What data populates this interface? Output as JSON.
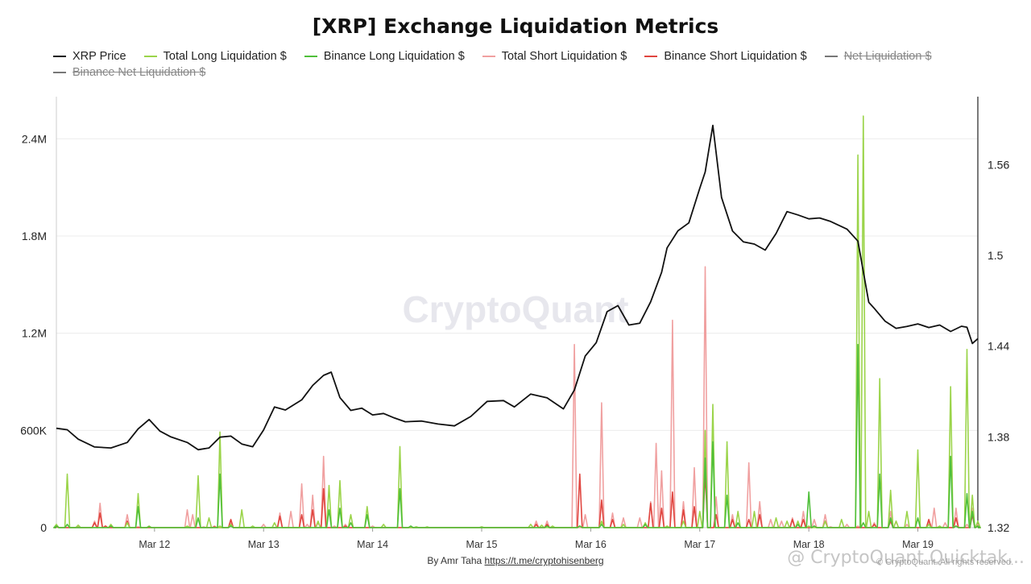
{
  "title": "[XRP] Exchange Liquidation Metrics",
  "legend": [
    {
      "label": "XRP Price",
      "color": "#111111",
      "hidden": false
    },
    {
      "label": "Total Long Liquidation $",
      "color": "#9bd44a",
      "hidden": false
    },
    {
      "label": "Binance Long Liquidation $",
      "color": "#4fbf3a",
      "hidden": false
    },
    {
      "label": "Total Short Liquidation $",
      "color": "#f0a0a0",
      "hidden": false
    },
    {
      "label": "Binance Short Liquidation $",
      "color": "#e0453f",
      "hidden": false
    },
    {
      "label": "Net Liquidation $",
      "color": "#777777",
      "hidden": true
    },
    {
      "label": "Binance Net Liquidation $",
      "color": "#777777",
      "hidden": true
    }
  ],
  "footer": {
    "prefix": "By Amr Taha",
    "link": "https://t.me/cryptohisenberg"
  },
  "watermark_center": "CryptoQuant",
  "watermark_corner": "@ CryptoQuant Quicktak...",
  "copyright": "© CryptoQuant. All rights reserved.",
  "chart_data": {
    "type": "line",
    "x_ticks": [
      "Mar 12",
      "Mar 13",
      "Mar 14",
      "Mar 15",
      "Mar 16",
      "Mar 17",
      "Mar 18",
      "Mar 19"
    ],
    "x_range": [
      11.1,
      19.55
    ],
    "y_left": {
      "ticks": [
        0,
        600000,
        1200000,
        1800000,
        2400000
      ],
      "tick_labels": [
        "0",
        "600K",
        "1.2M",
        "1.8M",
        "2.4M"
      ],
      "range": [
        0,
        2660000
      ]
    },
    "y_right": {
      "ticks": [
        1.32,
        1.38,
        1.44,
        1.5,
        1.56
      ],
      "tick_labels": [
        "1.32",
        "1.38",
        "1.44",
        "1.5",
        "1.56"
      ],
      "range": [
        1.32,
        1.605
      ]
    },
    "series": [
      {
        "name": "XRP Price",
        "axis": "right",
        "color": "#111111",
        "points": [
          [
            11.1,
            1.3857
          ],
          [
            11.2,
            1.3847
          ],
          [
            11.3,
            1.3785
          ],
          [
            11.45,
            1.3733
          ],
          [
            11.6,
            1.3727
          ],
          [
            11.75,
            1.3763
          ],
          [
            11.85,
            1.3853
          ],
          [
            11.95,
            1.3915
          ],
          [
            12.05,
            1.3838
          ],
          [
            12.15,
            1.38
          ],
          [
            12.3,
            1.3763
          ],
          [
            12.4,
            1.3715
          ],
          [
            12.5,
            1.3727
          ],
          [
            12.6,
            1.3798
          ],
          [
            12.7,
            1.3805
          ],
          [
            12.8,
            1.3753
          ],
          [
            12.9,
            1.3735
          ],
          [
            13.0,
            1.3845
          ],
          [
            13.1,
            1.3998
          ],
          [
            13.2,
            1.3978
          ],
          [
            13.35,
            1.4045
          ],
          [
            13.45,
            1.414
          ],
          [
            13.55,
            1.4207
          ],
          [
            13.62,
            1.4228
          ],
          [
            13.7,
            1.406
          ],
          [
            13.8,
            1.3975
          ],
          [
            13.9,
            1.399
          ],
          [
            14.0,
            1.3945
          ],
          [
            14.1,
            1.3955
          ],
          [
            14.2,
            1.3925
          ],
          [
            14.3,
            1.39
          ],
          [
            14.45,
            1.3905
          ],
          [
            14.6,
            1.3885
          ],
          [
            14.75,
            1.3873
          ],
          [
            14.9,
            1.3935
          ],
          [
            15.05,
            1.4035
          ],
          [
            15.2,
            1.404
          ],
          [
            15.3,
            1.3998
          ],
          [
            15.45,
            1.4083
          ],
          [
            15.6,
            1.4058
          ],
          [
            15.75,
            1.3985
          ],
          [
            15.85,
            1.411
          ],
          [
            15.95,
            1.4335
          ],
          [
            16.05,
            1.4423
          ],
          [
            16.15,
            1.4628
          ],
          [
            16.25,
            1.4668
          ],
          [
            16.35,
            1.454
          ],
          [
            16.45,
            1.4552
          ],
          [
            16.55,
            1.4693
          ],
          [
            16.65,
            1.4888
          ],
          [
            16.7,
            1.505
          ],
          [
            16.8,
            1.5163
          ],
          [
            16.9,
            1.5215
          ],
          [
            17.0,
            1.5445
          ],
          [
            17.05,
            1.5552
          ],
          [
            17.12,
            1.586
          ],
          [
            17.2,
            1.5383
          ],
          [
            17.3,
            1.5162
          ],
          [
            17.4,
            1.509
          ],
          [
            17.5,
            1.5075
          ],
          [
            17.6,
            1.5035
          ],
          [
            17.7,
            1.5145
          ],
          [
            17.8,
            1.529
          ],
          [
            17.9,
            1.5268
          ],
          [
            18.0,
            1.5242
          ],
          [
            18.1,
            1.5248
          ],
          [
            18.2,
            1.5225
          ],
          [
            18.35,
            1.5174
          ],
          [
            18.45,
            1.5095
          ],
          [
            18.55,
            1.469
          ],
          [
            18.6,
            1.465
          ],
          [
            18.7,
            1.4565
          ],
          [
            18.8,
            1.4518
          ],
          [
            18.9,
            1.453
          ],
          [
            19.0,
            1.4547
          ],
          [
            19.1,
            1.4523
          ],
          [
            19.2,
            1.454
          ],
          [
            19.3,
            1.4497
          ],
          [
            19.4,
            1.4532
          ],
          [
            19.45,
            1.4525
          ],
          [
            19.5,
            1.4418
          ],
          [
            19.55,
            1.445
          ]
        ]
      },
      {
        "name": "Total Long Liquidation $",
        "axis": "left",
        "color": "#9bd44a",
        "points": [
          [
            11.1,
            20000
          ],
          [
            11.2,
            330000
          ],
          [
            11.3,
            15000
          ],
          [
            11.6,
            20000
          ],
          [
            11.75,
            30000
          ],
          [
            11.85,
            210000
          ],
          [
            11.95,
            10000
          ],
          [
            12.3,
            10000
          ],
          [
            12.4,
            320000
          ],
          [
            12.5,
            60000
          ],
          [
            12.6,
            10000
          ],
          [
            12.6,
            590000
          ],
          [
            12.7,
            20000
          ],
          [
            12.8,
            110000
          ],
          [
            12.9,
            10000
          ],
          [
            13.1,
            30000
          ],
          [
            13.5,
            40000
          ],
          [
            13.6,
            260000
          ],
          [
            13.7,
            290000
          ],
          [
            13.8,
            80000
          ],
          [
            13.95,
            130000
          ],
          [
            14.1,
            20000
          ],
          [
            14.25,
            500000
          ],
          [
            14.4,
            5000
          ],
          [
            14.5,
            5000
          ],
          [
            15.0,
            5000
          ],
          [
            15.45,
            20000
          ],
          [
            15.55,
            15000
          ],
          [
            15.65,
            10000
          ],
          [
            15.9,
            10000
          ],
          [
            16.1,
            40000
          ],
          [
            16.3,
            20000
          ],
          [
            16.5,
            30000
          ],
          [
            16.7,
            10000
          ],
          [
            16.85,
            40000
          ],
          [
            17.0,
            100000
          ],
          [
            17.05,
            600000
          ],
          [
            17.12,
            760000
          ],
          [
            17.25,
            530000
          ],
          [
            17.35,
            100000
          ],
          [
            17.5,
            100000
          ],
          [
            17.7,
            60000
          ],
          [
            17.8,
            40000
          ],
          [
            17.9,
            40000
          ],
          [
            18.0,
            10000
          ],
          [
            18.15,
            40000
          ],
          [
            18.3,
            50000
          ],
          [
            18.45,
            2300000
          ],
          [
            18.5,
            2540000
          ],
          [
            18.55,
            100000
          ],
          [
            18.65,
            920000
          ],
          [
            18.75,
            230000
          ],
          [
            18.8,
            40000
          ],
          [
            18.9,
            100000
          ],
          [
            19.0,
            480000
          ],
          [
            19.1,
            20000
          ],
          [
            19.2,
            10000
          ],
          [
            19.3,
            870000
          ],
          [
            19.35,
            10000
          ],
          [
            19.45,
            1100000
          ],
          [
            19.5,
            200000
          ],
          [
            19.55,
            40000
          ]
        ]
      },
      {
        "name": "Binance Long Liquidation $",
        "axis": "left",
        "color": "#4fbf3a",
        "points": [
          [
            11.1,
            10000
          ],
          [
            11.2,
            20000
          ],
          [
            11.6,
            10000
          ],
          [
            11.85,
            130000
          ],
          [
            11.95,
            5000
          ],
          [
            12.4,
            60000
          ],
          [
            12.6,
            330000
          ],
          [
            12.7,
            10000
          ],
          [
            13.6,
            110000
          ],
          [
            13.7,
            120000
          ],
          [
            13.8,
            30000
          ],
          [
            13.95,
            80000
          ],
          [
            14.25,
            240000
          ],
          [
            14.35,
            10000
          ],
          [
            15.6,
            10000
          ],
          [
            15.9,
            10000
          ],
          [
            16.1,
            20000
          ],
          [
            16.5,
            20000
          ],
          [
            17.05,
            430000
          ],
          [
            17.12,
            530000
          ],
          [
            17.25,
            200000
          ],
          [
            17.35,
            30000
          ],
          [
            17.9,
            20000
          ],
          [
            18.0,
            220000
          ],
          [
            18.05,
            10000
          ],
          [
            18.45,
            1130000
          ],
          [
            18.5,
            30000
          ],
          [
            18.65,
            330000
          ],
          [
            18.75,
            60000
          ],
          [
            19.0,
            60000
          ],
          [
            19.3,
            440000
          ],
          [
            19.35,
            10000
          ],
          [
            19.45,
            210000
          ],
          [
            19.5,
            100000
          ],
          [
            19.55,
            10000
          ]
        ]
      },
      {
        "name": "Total Short Liquidation $",
        "axis": "left",
        "color": "#f0a0a0",
        "points": [
          [
            11.1,
            5000
          ],
          [
            11.3,
            5000
          ],
          [
            11.45,
            40000
          ],
          [
            11.5,
            150000
          ],
          [
            11.55,
            10000
          ],
          [
            11.75,
            80000
          ],
          [
            11.85,
            5000
          ],
          [
            12.3,
            110000
          ],
          [
            12.35,
            80000
          ],
          [
            12.45,
            5000
          ],
          [
            12.55,
            10000
          ],
          [
            12.7,
            30000
          ],
          [
            13.0,
            20000
          ],
          [
            13.15,
            90000
          ],
          [
            13.25,
            100000
          ],
          [
            13.35,
            270000
          ],
          [
            13.4,
            20000
          ],
          [
            13.45,
            200000
          ],
          [
            13.5,
            30000
          ],
          [
            13.55,
            440000
          ],
          [
            13.65,
            10000
          ],
          [
            13.75,
            20000
          ],
          [
            14.0,
            10000
          ],
          [
            14.4,
            5000
          ],
          [
            15.0,
            5000
          ],
          [
            15.5,
            40000
          ],
          [
            15.6,
            40000
          ],
          [
            15.85,
            1130000
          ],
          [
            15.95,
            80000
          ],
          [
            16.1,
            770000
          ],
          [
            16.2,
            90000
          ],
          [
            16.3,
            60000
          ],
          [
            16.45,
            60000
          ],
          [
            16.55,
            160000
          ],
          [
            16.6,
            520000
          ],
          [
            16.65,
            350000
          ],
          [
            16.75,
            1280000
          ],
          [
            16.85,
            160000
          ],
          [
            16.95,
            370000
          ],
          [
            17.05,
            1610000
          ],
          [
            17.15,
            190000
          ],
          [
            17.3,
            80000
          ],
          [
            17.45,
            400000
          ],
          [
            17.55,
            160000
          ],
          [
            17.65,
            50000
          ],
          [
            17.75,
            40000
          ],
          [
            17.85,
            60000
          ],
          [
            17.95,
            100000
          ],
          [
            18.05,
            50000
          ],
          [
            18.15,
            80000
          ],
          [
            18.2,
            5000
          ],
          [
            18.35,
            20000
          ],
          [
            18.45,
            10000
          ],
          [
            18.6,
            30000
          ],
          [
            18.75,
            100000
          ],
          [
            18.8,
            40000
          ],
          [
            18.9,
            20000
          ],
          [
            19.1,
            40000
          ],
          [
            19.15,
            120000
          ],
          [
            19.25,
            30000
          ],
          [
            19.35,
            120000
          ],
          [
            19.45,
            20000
          ],
          [
            19.5,
            120000
          ],
          [
            19.55,
            20000
          ]
        ]
      },
      {
        "name": "Binance Short Liquidation $",
        "axis": "left",
        "color": "#e0453f",
        "points": [
          [
            11.1,
            5000
          ],
          [
            11.45,
            30000
          ],
          [
            11.5,
            90000
          ],
          [
            11.55,
            10000
          ],
          [
            11.75,
            40000
          ],
          [
            12.55,
            5000
          ],
          [
            12.7,
            50000
          ],
          [
            13.15,
            70000
          ],
          [
            13.35,
            80000
          ],
          [
            13.45,
            110000
          ],
          [
            13.55,
            240000
          ],
          [
            13.75,
            10000
          ],
          [
            15.5,
            20000
          ],
          [
            15.6,
            20000
          ],
          [
            15.9,
            330000
          ],
          [
            16.1,
            170000
          ],
          [
            16.2,
            50000
          ],
          [
            16.55,
            150000
          ],
          [
            16.65,
            120000
          ],
          [
            16.75,
            220000
          ],
          [
            16.85,
            110000
          ],
          [
            16.95,
            130000
          ],
          [
            17.05,
            340000
          ],
          [
            17.15,
            80000
          ],
          [
            17.3,
            50000
          ],
          [
            17.45,
            50000
          ],
          [
            17.55,
            80000
          ],
          [
            17.85,
            50000
          ],
          [
            17.95,
            50000
          ],
          [
            18.05,
            10000
          ],
          [
            18.15,
            40000
          ],
          [
            18.6,
            20000
          ],
          [
            18.75,
            40000
          ],
          [
            19.1,
            50000
          ],
          [
            19.35,
            60000
          ],
          [
            19.5,
            80000
          ],
          [
            19.55,
            10000
          ]
        ]
      }
    ]
  }
}
